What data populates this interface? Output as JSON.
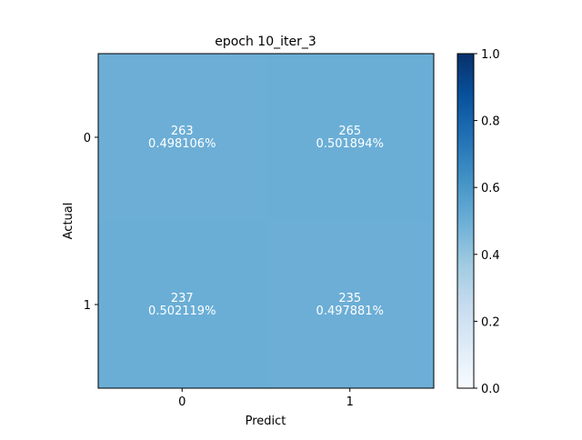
{
  "chart_data": {
    "type": "heatmap",
    "title": "epoch 10_iter_3",
    "xlabel": "Predict",
    "ylabel": "Actual",
    "x_categories": [
      "0",
      "1"
    ],
    "y_categories": [
      "0",
      "1"
    ],
    "counts": [
      [
        263,
        265
      ],
      [
        237,
        235
      ]
    ],
    "percent_labels": [
      [
        "0.498106%",
        "0.501894%"
      ],
      [
        "0.502119%",
        "0.497881%"
      ]
    ],
    "values": [
      [
        0.498106,
        0.501894
      ],
      [
        0.502119,
        0.497881
      ]
    ],
    "colorbar": {
      "range": [
        0.0,
        1.0
      ],
      "ticks": [
        "0.0",
        "0.2",
        "0.4",
        "0.6",
        "0.8",
        "1.0"
      ],
      "colormap": "Blues"
    },
    "colors": {
      "cell_text": "#ffffff",
      "low": "#f7fbff",
      "high": "#08306b"
    }
  }
}
